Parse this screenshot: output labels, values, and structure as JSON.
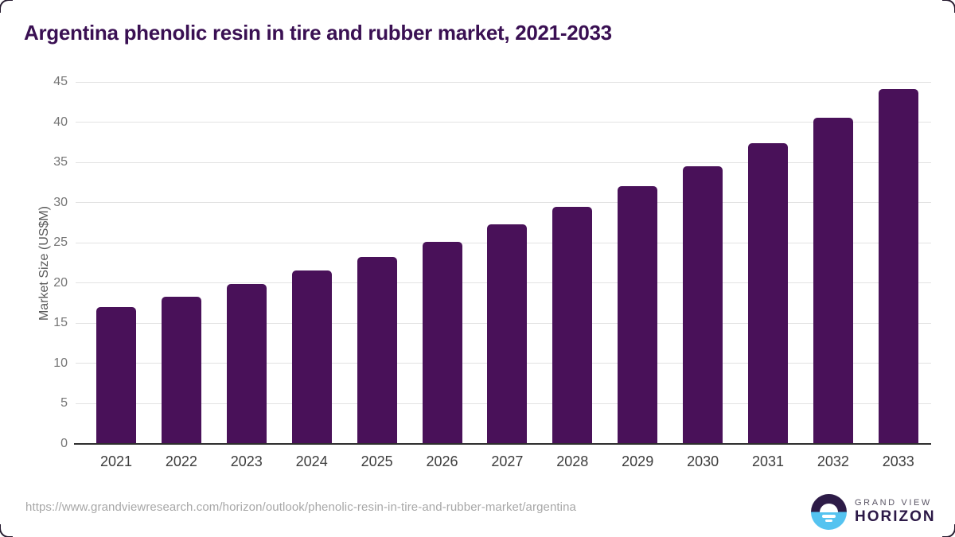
{
  "title": "Argentina phenolic resin in tire and rubber market, 2021-2033",
  "y_axis_title": "Market Size (US$M)",
  "footer": {
    "url": "https://www.grandviewresearch.com/horizon/outlook/phenolic-resin-in-tire-and-rubber-market/argentina",
    "logo_line1": "GRAND VIEW",
    "logo_line2": "HORIZON"
  },
  "colors": {
    "bar": "#491159",
    "title": "#3a1053",
    "gridline": "#e2e2e2",
    "axis_line": "#2e2e2e",
    "y_tick": "#757575",
    "x_tick": "#3d3d3d",
    "url_text": "#a7a7a7",
    "logo_dark": "#2d1b47",
    "logo_blue": "#55c3f0"
  },
  "chart_data": {
    "type": "bar",
    "title": "Argentina phenolic resin in tire and rubber market, 2021-2033",
    "categories": [
      "2021",
      "2022",
      "2023",
      "2024",
      "2025",
      "2026",
      "2027",
      "2028",
      "2029",
      "2030",
      "2031",
      "2032",
      "2033"
    ],
    "values": [
      17.0,
      18.3,
      19.9,
      21.6,
      23.2,
      25.1,
      27.3,
      29.5,
      32.0,
      34.5,
      37.4,
      40.6,
      44.1
    ],
    "xlabel": "",
    "ylabel": "Market Size (US$M)",
    "ylim": [
      0,
      45
    ],
    "yticks": [
      0,
      5,
      10,
      15,
      20,
      25,
      30,
      35,
      40,
      45
    ],
    "grid": "horizontal",
    "legend": "none",
    "bar_color": "#491159"
  }
}
